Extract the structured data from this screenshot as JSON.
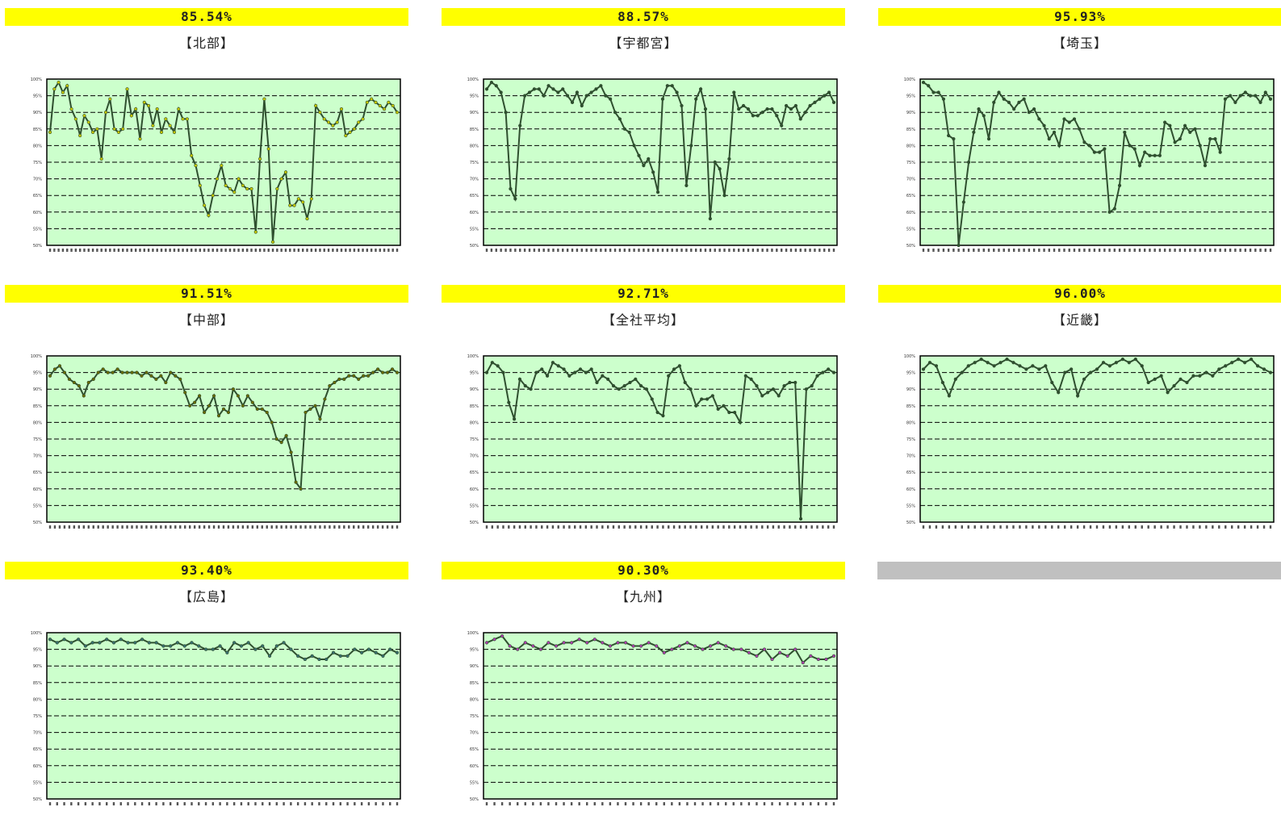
{
  "page": {
    "columns": 3
  },
  "chart_data": [
    {
      "type": "line",
      "title": "85.54%",
      "region": "【北部】",
      "line_color": "#2f4f2f",
      "marker_color": "#c8c800",
      "y_tick_labels": [
        "100%",
        "95%",
        "90%",
        "85%",
        "80%",
        "75%",
        "70%",
        "65%",
        "60%",
        "55%",
        "50%"
      ],
      "ylim": [
        50,
        100
      ],
      "values": [
        84,
        97,
        99,
        96,
        98,
        91,
        88,
        83,
        89,
        87,
        84,
        85,
        76,
        90,
        94,
        85,
        84,
        85,
        97,
        89,
        91,
        82,
        93,
        92,
        86,
        91,
        84,
        88,
        86,
        84,
        91,
        88,
        88,
        77,
        74,
        68,
        62,
        59,
        65,
        70,
        74,
        68,
        67,
        66,
        70,
        68,
        67,
        67,
        54,
        76,
        94,
        79,
        51,
        67,
        70,
        72,
        62,
        62,
        64,
        63,
        58,
        64,
        92,
        90,
        88,
        87,
        86,
        87,
        91,
        83,
        84,
        85,
        87,
        88,
        93,
        94,
        93,
        92,
        91,
        93,
        92,
        90
      ]
    },
    {
      "type": "line",
      "title": "88.57%",
      "region": "【宇都宮】",
      "line_color": "#2f4f2f",
      "marker_color": "#2f4f2f",
      "y_tick_labels": [
        "100%",
        "95%",
        "90%",
        "85%",
        "80%",
        "75%",
        "70%",
        "65%",
        "60%",
        "55%",
        "50%"
      ],
      "ylim": [
        50,
        100
      ],
      "values": [
        97,
        99,
        98,
        96,
        90,
        67,
        64,
        86,
        95,
        96,
        97,
        97,
        95,
        98,
        97,
        96,
        97,
        95,
        93,
        96,
        92,
        95,
        96,
        97,
        98,
        95,
        94,
        90,
        88,
        85,
        84,
        80,
        77,
        74,
        76,
        72,
        66,
        94,
        98,
        98,
        96,
        92,
        68,
        80,
        94,
        97,
        91,
        58,
        75,
        73,
        65,
        76,
        96,
        91,
        92,
        91,
        89,
        89,
        90,
        91,
        91,
        89,
        86,
        92,
        91,
        92,
        88,
        90,
        92,
        93,
        94,
        95,
        96,
        93
      ]
    },
    {
      "type": "line",
      "title": "95.93%",
      "region": "【埼玉】",
      "line_color": "#2f4f2f",
      "marker_color": "#2f4f2f",
      "y_tick_labels": [
        "100%",
        "95%",
        "90%",
        "85%",
        "80%",
        "75%",
        "70%",
        "65%",
        "60%",
        "55%",
        "50%"
      ],
      "ylim": [
        50,
        100
      ],
      "values": [
        99,
        98,
        96,
        96,
        94,
        83,
        82,
        50,
        63,
        75,
        84,
        91,
        89,
        82,
        93,
        96,
        94,
        93,
        91,
        93,
        94,
        90,
        91,
        88,
        86,
        82,
        84,
        80,
        88,
        87,
        88,
        85,
        81,
        80,
        78,
        78,
        79,
        60,
        61,
        68,
        84,
        80,
        79,
        74,
        78,
        77,
        77,
        77,
        87,
        86,
        81,
        82,
        86,
        84,
        85,
        80,
        74,
        82,
        82,
        78,
        94,
        95,
        93,
        95,
        96,
        95,
        95,
        93,
        96,
        94
      ]
    },
    {
      "type": "line",
      "title": "91.51%",
      "region": "【中部】",
      "line_color": "#2f4f2f",
      "marker_color": "#6b6b00",
      "y_tick_labels": [
        "100%",
        "95%",
        "90%",
        "85%",
        "80%",
        "75%",
        "70%",
        "65%",
        "60%",
        "55%",
        "50%"
      ],
      "ylim": [
        50,
        100
      ],
      "values": [
        94,
        96,
        97,
        95,
        93,
        92,
        91,
        88,
        92,
        93,
        95,
        96,
        95,
        95,
        96,
        95,
        95,
        95,
        95,
        94,
        95,
        94,
        93,
        94,
        92,
        95,
        94,
        93,
        89,
        85,
        86,
        88,
        83,
        85,
        88,
        82,
        84,
        83,
        90,
        88,
        85,
        88,
        86,
        84,
        84,
        83,
        80,
        75,
        74,
        76,
        71,
        62,
        60,
        83,
        84,
        85,
        81,
        87,
        91,
        92,
        93,
        93,
        94,
        94,
        93,
        94,
        94,
        95,
        96,
        95,
        95,
        96,
        95
      ]
    },
    {
      "type": "line",
      "title": "92.71%",
      "region": "【全社平均】",
      "line_color": "#2f4f2f",
      "marker_color": "#2f4f2f",
      "y_tick_labels": [
        "100%",
        "95%",
        "90%",
        "85%",
        "80%",
        "75%",
        "70%",
        "65%",
        "60%",
        "55%",
        "50%"
      ],
      "ylim": [
        50,
        100
      ],
      "values": [
        95,
        98,
        97,
        95,
        86,
        81,
        93,
        91,
        90,
        95,
        96,
        94,
        98,
        97,
        96,
        94,
        95,
        96,
        95,
        96,
        92,
        94,
        93,
        91,
        90,
        91,
        92,
        93,
        91,
        90,
        87,
        83,
        82,
        94,
        96,
        97,
        92,
        90,
        85,
        87,
        87,
        88,
        84,
        85,
        83,
        83,
        80,
        94,
        93,
        91,
        88,
        89,
        90,
        88,
        91,
        92,
        92,
        51,
        90,
        91,
        94,
        95,
        96,
        95
      ]
    },
    {
      "type": "line",
      "title": "96.00%",
      "region": "【近畿】",
      "line_color": "#2f4f2f",
      "marker_color": "#2f4f2f",
      "y_tick_labels": [
        "100%",
        "95%",
        "90%",
        "85%",
        "80%",
        "75%",
        "70%",
        "65%",
        "60%",
        "55%",
        "50%"
      ],
      "ylim": [
        50,
        100
      ],
      "values": [
        96,
        98,
        97,
        92,
        88,
        93,
        95,
        97,
        98,
        99,
        98,
        97,
        98,
        99,
        98,
        97,
        96,
        97,
        96,
        97,
        92,
        89,
        95,
        96,
        88,
        93,
        95,
        96,
        98,
        97,
        98,
        99,
        98,
        99,
        97,
        92,
        93,
        94,
        89,
        91,
        93,
        92,
        94,
        94,
        95,
        94,
        96,
        97,
        98,
        99,
        98,
        99,
        97,
        96,
        95
      ]
    },
    {
      "type": "line",
      "title": "93.40%",
      "region": "【広島】",
      "line_color": "#2f4f2f",
      "marker_color": "#3a7070",
      "y_tick_labels": [
        "100%",
        "95%",
        "90%",
        "85%",
        "80%",
        "75%",
        "70%",
        "65%",
        "60%",
        "55%",
        "50%"
      ],
      "ylim": [
        50,
        100
      ],
      "values": [
        98,
        97,
        98,
        97,
        98,
        96,
        97,
        97,
        98,
        97,
        98,
        97,
        97,
        98,
        97,
        97,
        96,
        96,
        97,
        96,
        97,
        96,
        95,
        95,
        96,
        94,
        97,
        96,
        97,
        95,
        96,
        93,
        96,
        97,
        95,
        93,
        92,
        93,
        92,
        92,
        94,
        93,
        93,
        95,
        94,
        95,
        94,
        93,
        95,
        94
      ]
    },
    {
      "type": "line",
      "title": "90.30%",
      "region": "【九州】",
      "line_color": "#2f4f2f",
      "marker_color": "#b040b0",
      "y_tick_labels": [
        "100%",
        "95%",
        "90%",
        "85%",
        "80%",
        "75%",
        "70%",
        "65%",
        "60%",
        "55%",
        "50%"
      ],
      "ylim": [
        50,
        100
      ],
      "values": [
        97,
        98,
        99,
        96,
        95,
        97,
        96,
        95,
        97,
        96,
        97,
        97,
        98,
        97,
        98,
        97,
        96,
        97,
        97,
        96,
        96,
        97,
        96,
        94,
        95,
        96,
        97,
        96,
        95,
        96,
        97,
        96,
        95,
        95,
        94,
        93,
        95,
        92,
        94,
        93,
        95,
        91,
        93,
        92,
        92,
        93
      ]
    }
  ]
}
